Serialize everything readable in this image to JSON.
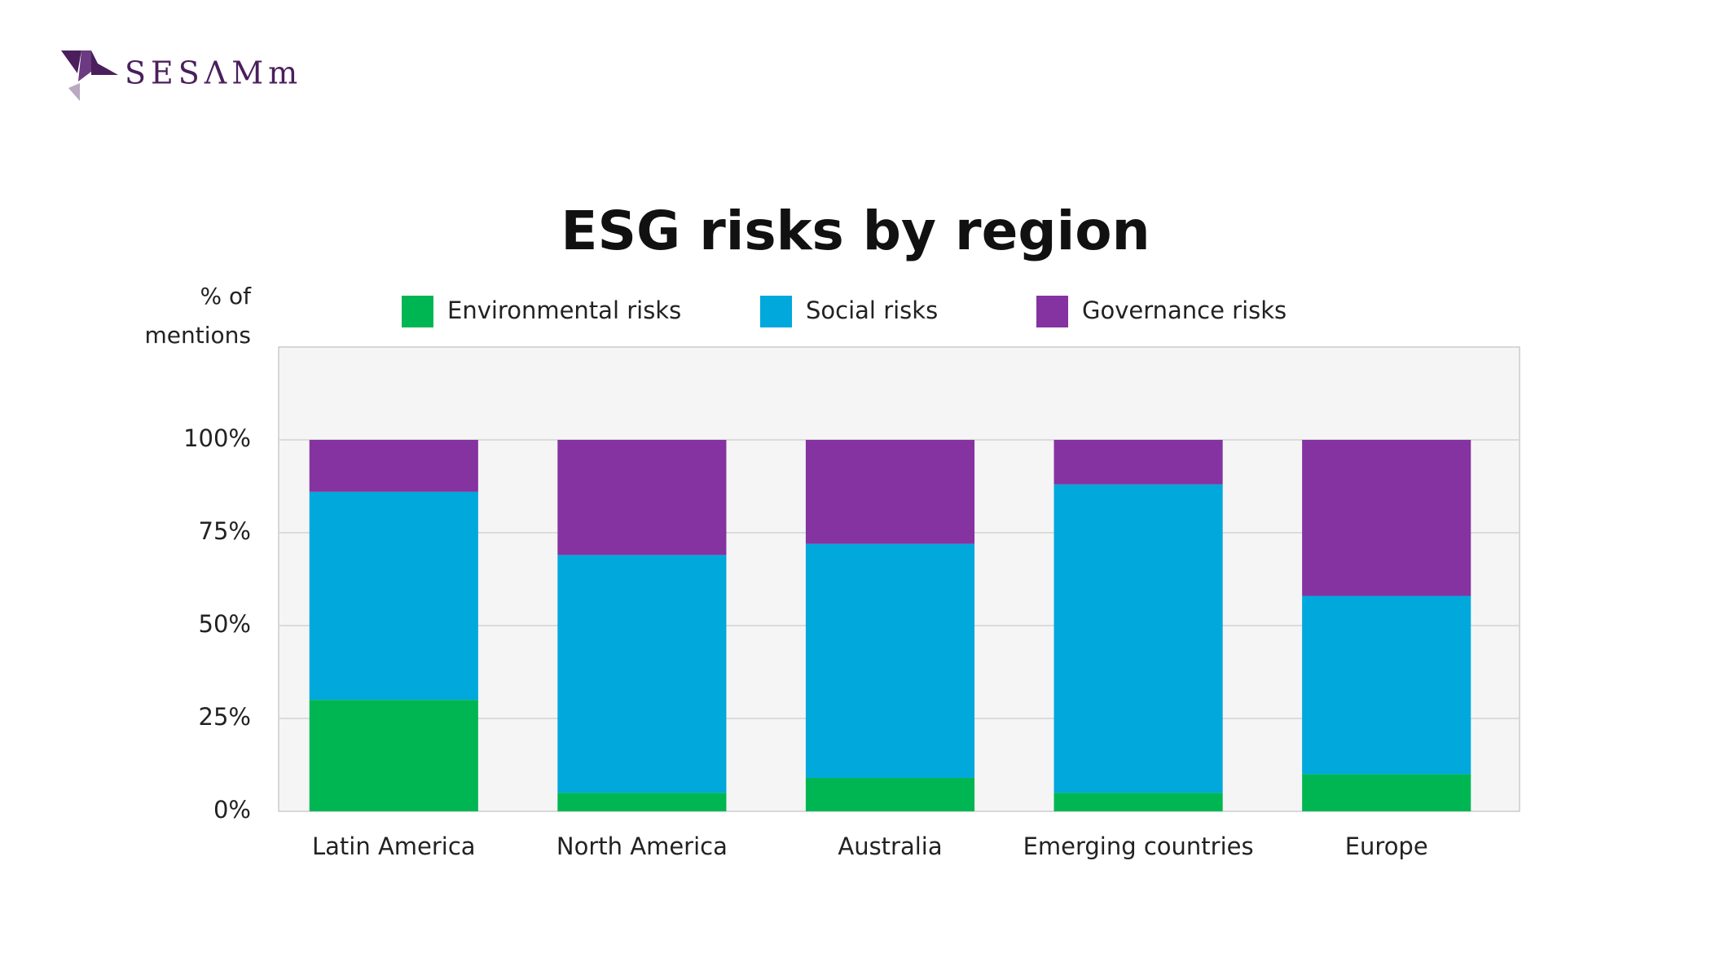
{
  "logo": "SESΛMm",
  "chart_data": {
    "type": "stacked-bar",
    "title": "ESG risks by region",
    "y_label": "% of mentions",
    "categories": [
      "Latin America",
      "North America",
      "Australia",
      "Emerging countries",
      "Europe"
    ],
    "series": [
      {
        "name": "Environmental risks",
        "color": "#00b652",
        "values": [
          30,
          5,
          9,
          5,
          10
        ]
      },
      {
        "name": "Social risks",
        "color": "#00a8dc",
        "values": [
          56,
          64,
          63,
          83,
          48
        ]
      },
      {
        "name": "Governance risks",
        "color": "#8533a0",
        "values": [
          14,
          31,
          28,
          12,
          42
        ]
      }
    ],
    "ylim": [
      0,
      125
    ],
    "yticks": [
      {
        "value": 0,
        "label": "0%"
      },
      {
        "value": 25,
        "label": "25%"
      },
      {
        "value": 50,
        "label": "50%"
      },
      {
        "value": 75,
        "label": "75%"
      },
      {
        "value": 100,
        "label": "100%"
      }
    ],
    "grid": true
  }
}
